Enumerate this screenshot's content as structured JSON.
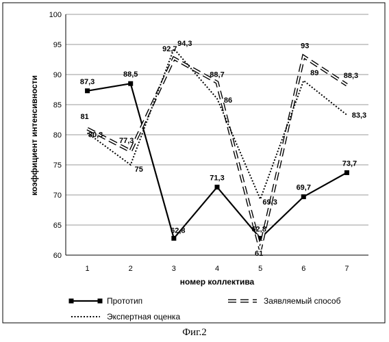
{
  "chart_data": {
    "type": "line",
    "xlabel": "номер коллектива",
    "ylabel": "коэффициент интенсивности",
    "x": [
      1,
      2,
      3,
      4,
      5,
      6,
      7
    ],
    "ylim": [
      60,
      100
    ],
    "yticks": [
      60,
      65,
      70,
      75,
      80,
      85,
      90,
      95,
      100
    ],
    "grid": "horizontal",
    "legend_position": "bottom",
    "series": [
      {
        "name": "Прототип",
        "style": "solid-square-markers",
        "color": "#000000",
        "values": [
          87.3,
          88.5,
          62.8,
          71.3,
          62.8,
          69.7,
          73.7
        ],
        "labels": [
          "87,3",
          "88,5",
          "62,8",
          "71,3",
          "62,8",
          "69,7",
          "73,7"
        ]
      },
      {
        "name": "Заявляемый способ",
        "style": "double-dashed",
        "color": "#000000",
        "values": [
          81,
          77.3,
          92.7,
          88.7,
          61,
          93,
          88.3
        ],
        "labels": [
          "81",
          "77,3",
          "92,7",
          "88,7",
          "61",
          "93",
          "88,3"
        ]
      },
      {
        "name": "Экспертная оценка",
        "style": "dotted",
        "color": "#000000",
        "values": [
          80.3,
          75,
          94.3,
          86,
          69.3,
          89,
          83.3
        ],
        "labels": [
          "80,3",
          "75",
          "94,3",
          "86",
          "69,3",
          "89",
          "83,3"
        ]
      }
    ]
  },
  "caption": "Фиг.2"
}
